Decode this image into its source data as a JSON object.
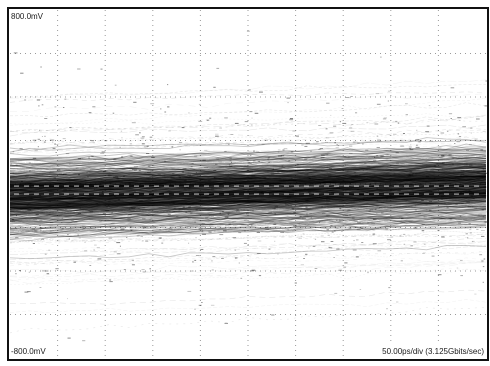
{
  "chart_data": {
    "type": "scatter",
    "title": "",
    "y_top_label": "800.0mV",
    "y_bottom_label": "-800.0mV",
    "x_scale_label": "50.00ps/div (3.125Gbits/sec)",
    "ylim_mV": [
      -800,
      800
    ],
    "divisions": {
      "x": 10,
      "y": 8
    },
    "grid": true,
    "series": [
      {
        "trace_band_center_left_mV": -50,
        "trace_band_center_right_mV": 0,
        "trace_band_halfwidth_mV": 120,
        "trace_spread_mV": 420
      }
    ],
    "colors": {
      "frame": "#111111",
      "trace": "#000000",
      "grid": "#9a9a9a",
      "background": "#ffffff"
    }
  }
}
